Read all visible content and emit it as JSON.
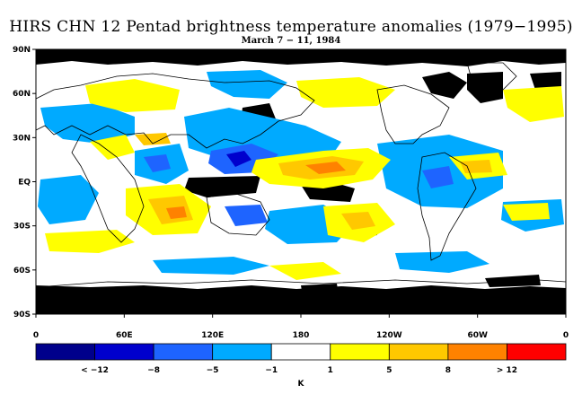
{
  "title": "HIRS CHN 12 Pentad brightness temperature anomalies (1979−1995)",
  "subtitle": "March 7 − 11, 1984",
  "map": {
    "lat_ticks": [
      "90N",
      "60N",
      "30N",
      "EQ",
      "30S",
      "60S",
      "90S"
    ],
    "lon_ticks": [
      "0",
      "60E",
      "120E",
      "180",
      "120W",
      "60W",
      "0"
    ]
  },
  "colorbar": {
    "unit": "K",
    "labels": [
      "< −12",
      "−8",
      "−5",
      "−1",
      "1",
      "5",
      "8",
      "> 12"
    ],
    "colors": [
      "#00008b",
      "#0000cd",
      "#1e64ff",
      "#00aaff",
      "#ffffff",
      "#ffff00",
      "#ffc800",
      "#ff8200",
      "#ff0000"
    ]
  },
  "colors": {
    "missing": "#000000",
    "coast": "#000000",
    "frame": "#000000"
  }
}
